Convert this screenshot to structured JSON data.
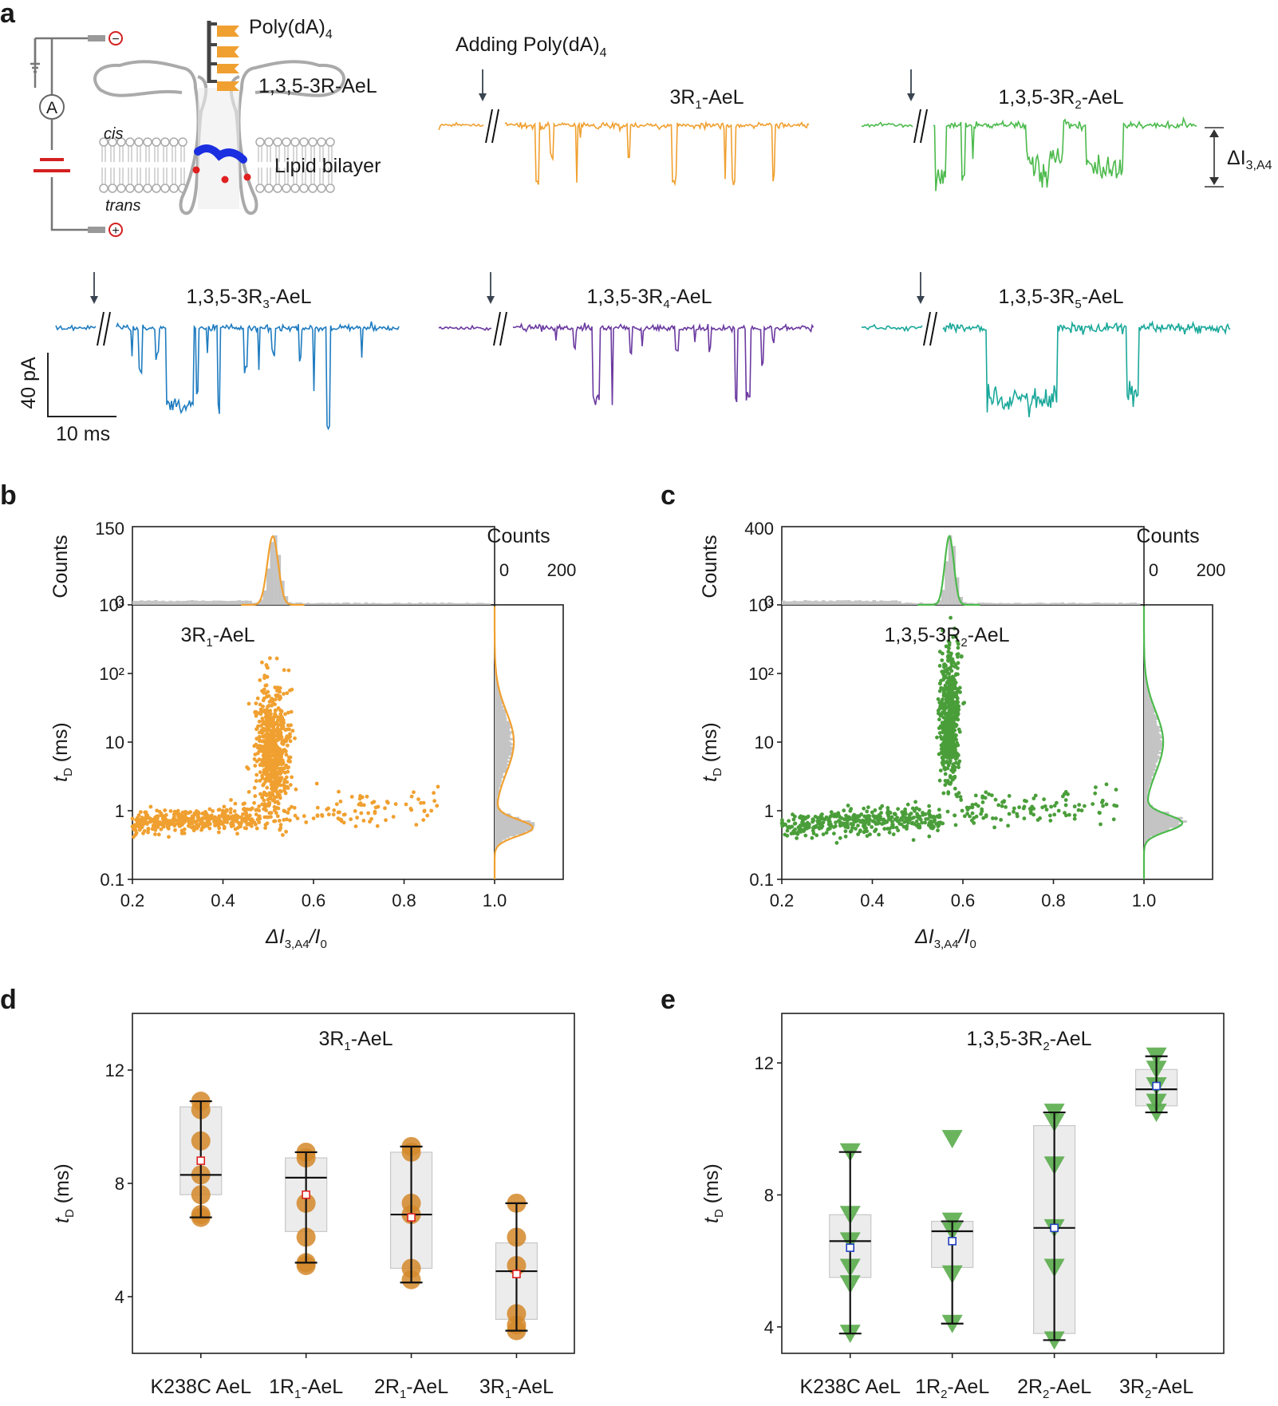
{
  "panel_labels": {
    "a": "a",
    "b": "b",
    "c": "c",
    "d": "d",
    "e": "e"
  },
  "panel_a": {
    "schematic": {
      "poly": "Poly(dA)",
      "poly_sub": "4",
      "protein": "1,3,5-3R-AeL",
      "cis": "cis",
      "trans": "trans",
      "bilayer": "Lipid bilayer",
      "ammeter": "A",
      "minus": "−",
      "plus": "+"
    },
    "adding_pre": "Adding Poly(dA)",
    "adding_sub": "4",
    "delta_label": "ΔI",
    "delta_sub": "3,A4",
    "scale_y": "40 pA",
    "scale_x": "10 ms",
    "traces": [
      {
        "id": "t1",
        "name_pre": "3R",
        "name_sub": "1",
        "name_post": "-AeL",
        "color": "#f0a030"
      },
      {
        "id": "t2",
        "name_pre": "1,3,5-3R",
        "name_sub": "2",
        "name_post": "-AeL",
        "color": "#4cba4c"
      },
      {
        "id": "t3",
        "name_pre": "1,3,5-3R",
        "name_sub": "3",
        "name_post": "-AeL",
        "color": "#1f7cc0"
      },
      {
        "id": "t4",
        "name_pre": "1,3,5-3R",
        "name_sub": "4",
        "name_post": "-AeL",
        "color": "#6b3aa0"
      },
      {
        "id": "t5",
        "name_pre": "1,3,5-3R",
        "name_sub": "5",
        "name_post": "-AeL",
        "color": "#1aa89a"
      }
    ]
  },
  "chart_data": [
    {
      "id": "b",
      "type": "scatter",
      "title_pre": "3R",
      "title_sub": "1",
      "title_post": "-AeL",
      "color": "#f0a030",
      "xlabel_pre": "ΔI",
      "xlabel_sub": "3,A4",
      "xlabel_mid": "/I",
      "xlabel_sub2": "0",
      "ylabel": "t",
      "ylabel_sub": "D",
      "ylabel_post": " (ms)",
      "xlim": [
        0.2,
        1.0
      ],
      "xticks": [
        "0.2",
        "0.4",
        "0.6",
        "0.8",
        "1.0"
      ],
      "ylim_log": [
        0.1,
        1000
      ],
      "yticks": [
        "0.1",
        "1",
        "10",
        "10²",
        "10³"
      ],
      "top_hist": {
        "ylabel": "Counts",
        "ymax": "150",
        "ymin": "0",
        "peak_center": 0.51,
        "peak_width": 0.012
      },
      "side_hist": {
        "label": "Counts",
        "xticks": [
          "0",
          "200"
        ],
        "peak_log": -0.25
      },
      "clusters": [
        {
          "x_range": [
            0.2,
            0.48
          ],
          "y_center": 0.65,
          "n": 420,
          "spread": 0.08
        },
        {
          "x_center": 0.51,
          "x_width": 0.018,
          "y_center": 8,
          "n": 650,
          "spread": 0.45
        },
        {
          "x_range": [
            0.48,
            0.88
          ],
          "y_center": 0.9,
          "n": 100,
          "spread": 0.12
        }
      ]
    },
    {
      "id": "c",
      "type": "scatter",
      "title_pre": "1,3,5-3R",
      "title_sub": "2",
      "title_post": "-AeL",
      "color": "#4a9e3a",
      "xlabel_pre": "ΔI",
      "xlabel_sub": "3,A4",
      "xlabel_mid": "/I",
      "xlabel_sub2": "0",
      "ylabel": "t",
      "ylabel_sub": "D",
      "ylabel_post": " (ms)",
      "xlim": [
        0.2,
        1.0
      ],
      "xticks": [
        "0.2",
        "0.4",
        "0.6",
        "0.8",
        "1.0"
      ],
      "ylim_log": [
        0.1,
        1000
      ],
      "yticks": [
        "0.1",
        "1",
        "10",
        "10²",
        "10³"
      ],
      "top_hist": {
        "ylabel": "Counts",
        "ymax": "400",
        "ymin": "0",
        "peak_center": 0.57,
        "peak_width": 0.01
      },
      "side_hist": {
        "label": "Counts",
        "xticks": [
          "0",
          "200"
        ],
        "peak_log": -0.18
      },
      "clusters": [
        {
          "x_range": [
            0.2,
            0.55
          ],
          "y_center": 0.6,
          "n": 380,
          "spread": 0.09
        },
        {
          "x_center": 0.57,
          "x_width": 0.012,
          "y_center": 20,
          "n": 520,
          "spread": 0.5
        },
        {
          "x_range": [
            0.58,
            0.94
          ],
          "y_center": 1.0,
          "n": 110,
          "spread": 0.12
        }
      ]
    },
    {
      "id": "d",
      "type": "box",
      "title_pre": "3R",
      "title_sub": "1",
      "title_post": "-AeL",
      "ylabel": "t",
      "ylabel_sub": "D",
      "ylabel_post": " (ms)",
      "ylim": [
        2,
        14
      ],
      "yticks": [
        "4",
        "8",
        "12"
      ],
      "marker": "circle",
      "color": "#d4882a",
      "mean_color": "#e02020",
      "categories": [
        {
          "pre": "K238C AeL",
          "sub": "",
          "post": ""
        },
        {
          "pre": "1R",
          "sub": "1",
          "post": "-AeL"
        },
        {
          "pre": "2R",
          "sub": "1",
          "post": "-AeL"
        },
        {
          "pre": "3R",
          "sub": "1",
          "post": "-AeL"
        }
      ],
      "boxes": [
        {
          "q1": 7.6,
          "q3": 10.7,
          "median": 8.3,
          "mean": 8.8,
          "wl": 6.8,
          "wh": 10.9,
          "points": [
            10.9,
            10.6,
            9.5,
            8.3,
            7.6,
            6.9,
            6.8
          ]
        },
        {
          "q1": 6.3,
          "q3": 8.9,
          "median": 8.2,
          "mean": 7.6,
          "wl": 5.2,
          "wh": 9.1,
          "points": [
            9.1,
            8.9,
            7.3,
            6.1,
            5.2,
            5.1
          ]
        },
        {
          "q1": 5.0,
          "q3": 9.1,
          "median": 6.9,
          "mean": 6.8,
          "wl": 4.5,
          "wh": 9.3,
          "points": [
            9.3,
            9.1,
            7.3,
            6.9,
            5.0,
            4.6
          ]
        },
        {
          "q1": 3.2,
          "q3": 5.9,
          "median": 4.9,
          "mean": 4.8,
          "wl": 2.8,
          "wh": 7.3,
          "points": [
            7.3,
            6.1,
            5.1,
            3.4,
            3.0,
            2.8
          ]
        }
      ]
    },
    {
      "id": "e",
      "type": "box",
      "title_pre": "1,3,5-3R",
      "title_sub": "2",
      "title_post": "-AeL",
      "ylabel": "t",
      "ylabel_sub": "D",
      "ylabel_post": " (ms)",
      "ylim": [
        3.2,
        13.5
      ],
      "yticks": [
        "4",
        "8",
        "12"
      ],
      "marker": "triangle-down",
      "color": "#5aac4c",
      "mean_color": "#2040c0",
      "categories": [
        {
          "pre": "K238C AeL",
          "sub": "",
          "post": ""
        },
        {
          "pre": "1R",
          "sub": "2",
          "post": "-AeL"
        },
        {
          "pre": "2R",
          "sub": "2",
          "post": "-AeL"
        },
        {
          "pre": "3R",
          "sub": "2",
          "post": "-AeL"
        }
      ],
      "boxes": [
        {
          "q1": 5.5,
          "q3": 7.4,
          "median": 6.6,
          "mean": 6.4,
          "wl": 3.8,
          "wh": 9.3,
          "points": [
            9.3,
            7.4,
            6.6,
            5.8,
            5.3,
            3.8
          ]
        },
        {
          "q1": 5.8,
          "q3": 7.2,
          "median": 6.9,
          "mean": 6.6,
          "wl": 4.1,
          "wh": 7.2,
          "points": [
            9.7,
            7.2,
            6.9,
            5.6,
            4.1
          ]
        },
        {
          "q1": 3.8,
          "q3": 10.1,
          "median": 7.0,
          "mean": 7.0,
          "wl": 3.6,
          "wh": 10.5,
          "points": [
            10.5,
            10.2,
            8.9,
            7.0,
            5.8,
            3.6
          ]
        },
        {
          "q1": 10.7,
          "q3": 11.8,
          "median": 11.2,
          "mean": 11.3,
          "wl": 10.5,
          "wh": 12.2,
          "points": [
            12.2,
            11.8,
            11.3,
            10.8,
            10.5
          ]
        }
      ]
    }
  ]
}
